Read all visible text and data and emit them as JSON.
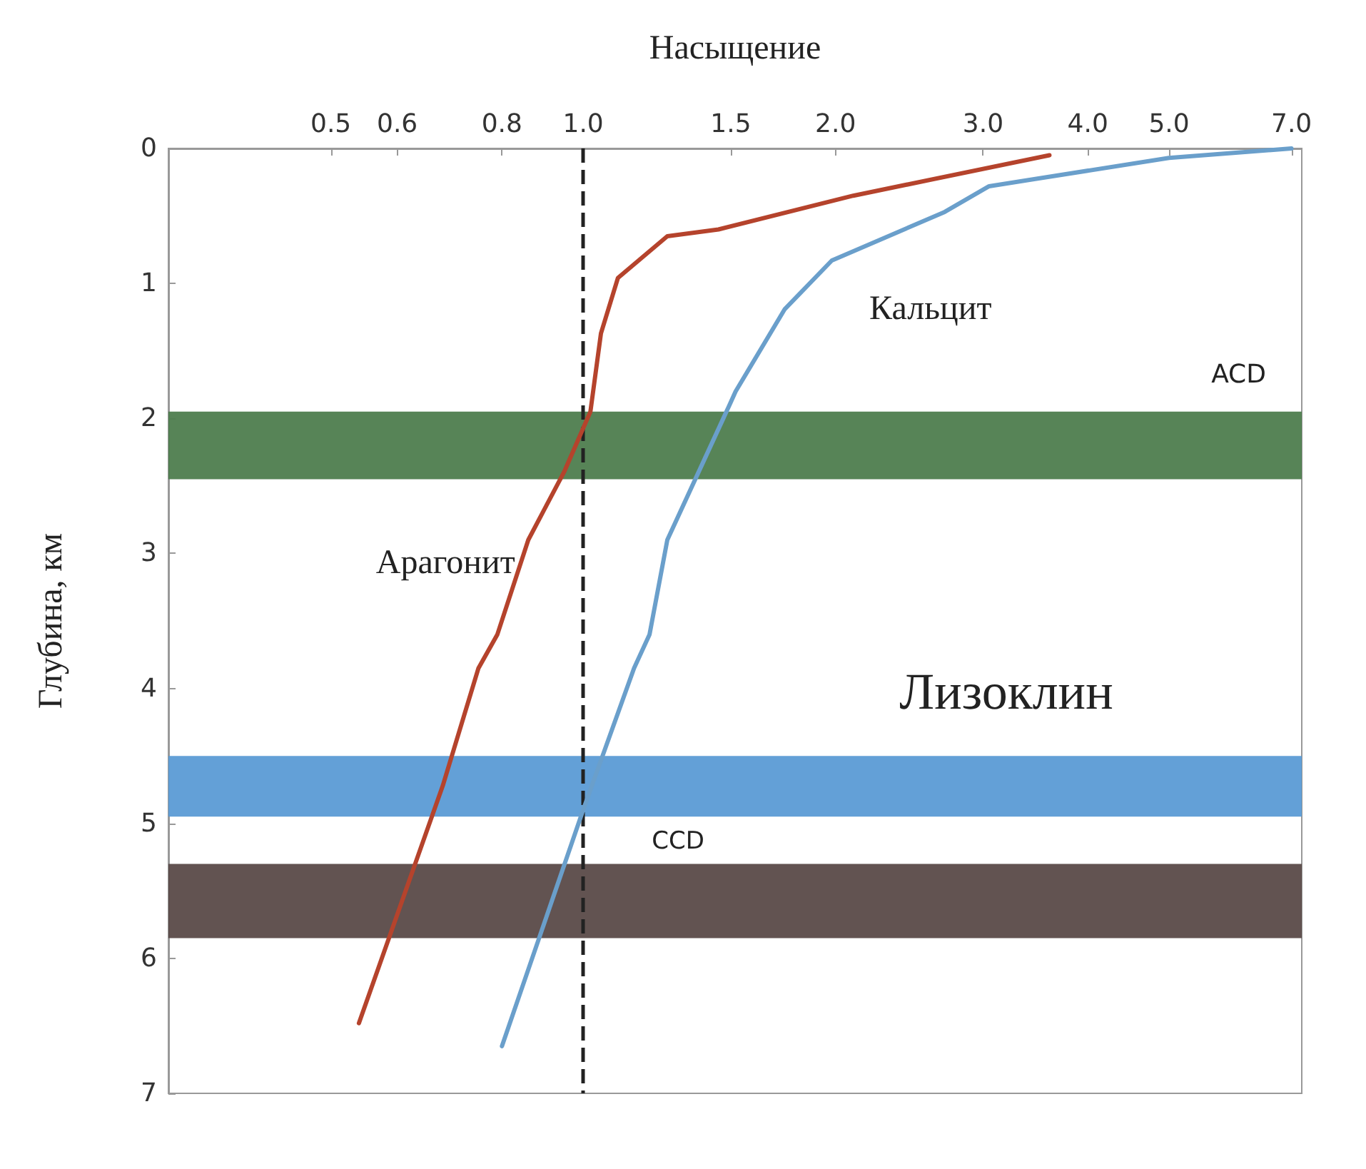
{
  "chart_data": {
    "type": "line",
    "xlabel": "Насыщение",
    "ylabel": "Глубина, км",
    "log": "x",
    "xlim": [
      0.32,
      7.2
    ],
    "xticks": [
      0.5,
      0.6,
      0.8,
      {
        "value": 1,
        "label": "1.0"
      },
      1.5,
      {
        "value": 2,
        "label": "2.0"
      },
      {
        "value": 3,
        "label": "3.0"
      },
      {
        "value": 4,
        "label": "4.0"
      },
      {
        "value": 5,
        "label": "5.0"
      },
      {
        "value": 7,
        "label": "7.0"
      }
    ],
    "ylim": [
      7,
      0
    ],
    "yticks": [
      0,
      1,
      2,
      3,
      4,
      5,
      6,
      7
    ],
    "grid": false,
    "legend": false,
    "line_style": "solid",
    "series": [
      {
        "name": "Арагонит",
        "color": "#b5432c",
        "x": [
          3.6,
          2.1,
          1.45,
          1.26,
          1.1,
          1.05,
          1.02,
          0.95,
          0.86,
          0.79,
          0.75,
          0.68,
          0.54
        ],
        "values": [
          0.05,
          0.35,
          0.6,
          0.65,
          0.96,
          1.37,
          1.95,
          2.39,
          2.9,
          3.6,
          3.85,
          4.72,
          6.48
        ]
      },
      {
        "name": "Кальцит",
        "color": "#6a9fcb",
        "x": [
          7.0,
          5.0,
          3.05,
          2.7,
          1.98,
          1.74,
          1.52,
          1.5,
          1.26,
          1.2,
          1.15,
          1.0,
          0.8
        ],
        "values": [
          0.0,
          0.07,
          0.28,
          0.47,
          0.83,
          1.19,
          1.8,
          1.88,
          2.9,
          3.6,
          3.85,
          4.9,
          6.65
        ]
      }
    ],
    "ref_lines": [
      {
        "axis": "x",
        "value": 1,
        "color": "#222222",
        "line_style": "dashed"
      }
    ],
    "bands": [
      {
        "axis": "y",
        "from": 1.95,
        "to": 2.45,
        "label": "ACD",
        "color": "#4e7d4e"
      },
      {
        "axis": "y",
        "from": 4.5,
        "to": 4.95,
        "label": "Лизоклин",
        "color": "#5b9bd5"
      },
      {
        "axis": "y",
        "from": 5.3,
        "to": 5.85,
        "label": "CCD",
        "color": "#5a4a48"
      }
    ]
  }
}
